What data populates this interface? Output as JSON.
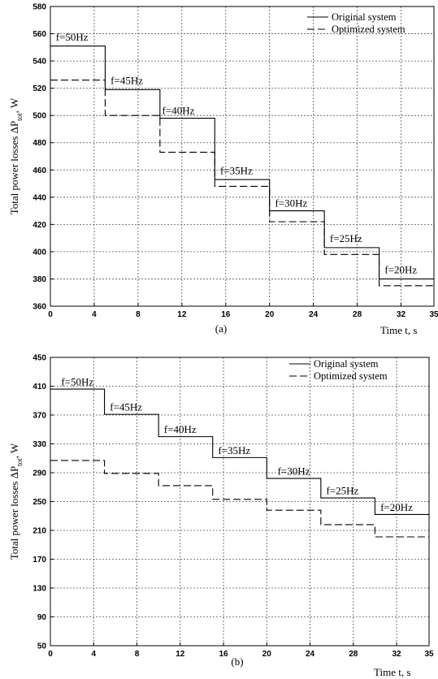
{
  "chart_data": [
    {
      "type": "line",
      "panel_label": "(a)",
      "xlabel": "Time t, s",
      "ylabel": "Total power losses ΔP",
      "ylabel_sub": "tot",
      "ylabel_unit": ", W",
      "xlim": [
        0,
        35
      ],
      "ylim": [
        360,
        580
      ],
      "xticks": [
        0,
        4,
        8,
        12,
        16,
        20,
        24,
        28,
        32,
        35
      ],
      "yticks": [
        360,
        380,
        400,
        420,
        440,
        460,
        480,
        500,
        520,
        540,
        560,
        580
      ],
      "grid": true,
      "legend_position": "top-right",
      "series": [
        {
          "name": "Original system",
          "style": "solid",
          "x": [
            0,
            5,
            10,
            15,
            20,
            25,
            30,
            35
          ],
          "values": [
            551,
            519,
            498,
            453,
            430,
            403,
            380,
            380
          ]
        },
        {
          "name": "Optimized system",
          "style": "dashed",
          "x": [
            0,
            5,
            10,
            15,
            20,
            25,
            30,
            35
          ],
          "values": [
            526,
            500,
            473,
            448,
            422,
            398,
            375,
            375
          ]
        }
      ],
      "annotations": [
        {
          "text": "f=50Hz",
          "x": 0.5,
          "y": 555
        },
        {
          "text": "f=45Hz",
          "x": 5.5,
          "y": 523
        },
        {
          "text": "f=40Hz",
          "x": 10.2,
          "y": 501
        },
        {
          "text": "f=35Hz",
          "x": 15.5,
          "y": 457
        },
        {
          "text": "f=30Hz",
          "x": 20.5,
          "y": 433
        },
        {
          "text": "f=25Hz",
          "x": 25.5,
          "y": 407
        },
        {
          "text": "f=20Hz",
          "x": 30.5,
          "y": 384
        }
      ]
    },
    {
      "type": "line",
      "panel_label": "(b)",
      "xlabel": "Time t, s",
      "ylabel": "Total power losses ΔP",
      "ylabel_sub": "tot",
      "ylabel_unit": ", W",
      "xlim": [
        0,
        35
      ],
      "ylim": [
        50,
        450
      ],
      "xticks": [
        0,
        4,
        8,
        12,
        16,
        20,
        24,
        28,
        32,
        35
      ],
      "yticks": [
        50,
        90,
        130,
        170,
        210,
        250,
        290,
        330,
        370,
        410,
        450
      ],
      "grid": true,
      "legend_position": "top-right",
      "series": [
        {
          "name": "Original system",
          "style": "solid",
          "x": [
            0,
            5,
            10,
            15,
            20,
            25,
            30,
            35
          ],
          "values": [
            406,
            371,
            340,
            311,
            282,
            255,
            232,
            232
          ]
        },
        {
          "name": "Optimized system",
          "style": "dashed",
          "x": [
            0,
            5,
            10,
            15,
            20,
            25,
            30,
            35
          ],
          "values": [
            307,
            289,
            272,
            253,
            238,
            218,
            201,
            201
          ]
        }
      ],
      "annotations": [
        {
          "text": "f=50Hz",
          "x": 1.0,
          "y": 411
        },
        {
          "text": "f=45Hz",
          "x": 5.5,
          "y": 376
        },
        {
          "text": "f=40Hz",
          "x": 10.5,
          "y": 345
        },
        {
          "text": "f=35Hz",
          "x": 15.5,
          "y": 316
        },
        {
          "text": "f=30Hz",
          "x": 21.0,
          "y": 287
        },
        {
          "text": "f=25Hz",
          "x": 25.5,
          "y": 260
        },
        {
          "text": "f=20Hz",
          "x": 30.5,
          "y": 237
        }
      ]
    }
  ]
}
